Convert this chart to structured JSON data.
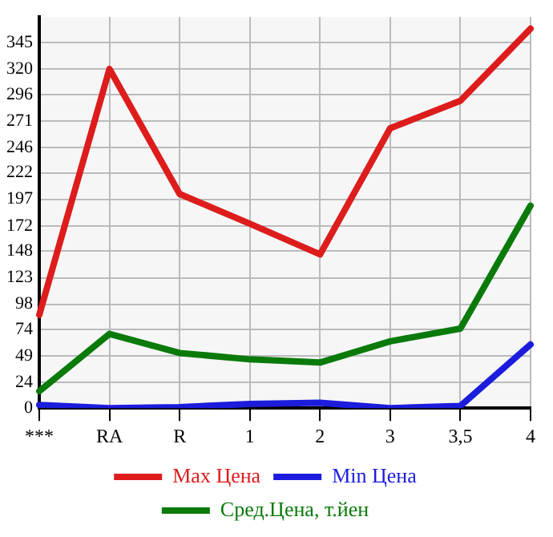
{
  "chart_data": {
    "type": "line",
    "categories": [
      "***",
      "RA",
      "R",
      "1",
      "2",
      "3",
      "3,5",
      "4"
    ],
    "series": [
      {
        "name": "Max Цена",
        "color": "#dd1c1c",
        "values": [
          88,
          320,
          202,
          174,
          145,
          264,
          290,
          358
        ]
      },
      {
        "name": "Min Цена",
        "color": "#1c1cdd",
        "values": [
          3,
          0,
          1,
          4,
          5,
          0,
          2,
          60
        ]
      },
      {
        "name": "Сред.Цена, т.йен",
        "color": "#0a7a0a",
        "values": [
          16,
          70,
          52,
          46,
          43,
          63,
          75,
          191
        ]
      }
    ],
    "ylim": [
      0,
      369
    ],
    "yticks": [
      0,
      24,
      49,
      74,
      98,
      123,
      148,
      172,
      197,
      222,
      246,
      271,
      296,
      320,
      345
    ],
    "grid": true,
    "legend": "bottom",
    "marker": "none",
    "line_style": "solid"
  }
}
